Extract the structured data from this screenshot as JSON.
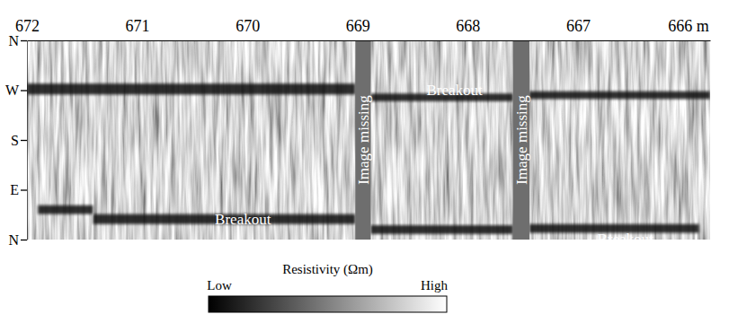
{
  "chart_data": {
    "type": "image_log",
    "xlim": [
      672,
      665.8
    ],
    "xticks": [
      672,
      671,
      670,
      669,
      668,
      667,
      {
        "value": 666,
        "label": "666 m"
      }
    ],
    "ylim": [
      0,
      360
    ],
    "yticks": [
      {
        "value": 360,
        "label": "N"
      },
      {
        "value": 270,
        "label": "W"
      },
      {
        "value": 180,
        "label": "S"
      },
      {
        "value": 90,
        "label": "E"
      },
      {
        "value": 0,
        "label": "N"
      }
    ],
    "breakouts": [
      {
        "from": 672,
        "to": 669.02,
        "azimuth": [
          262,
          282
        ]
      },
      {
        "from": 668.88,
        "to": 667.59,
        "azimuth": [
          250,
          264
        ]
      },
      {
        "from": 667.44,
        "to": 665.8,
        "azimuth": [
          254,
          268
        ]
      },
      {
        "from": 671.9,
        "to": 671.4,
        "azimuth": [
          46,
          62
        ]
      },
      {
        "from": 671.4,
        "to": 669.02,
        "azimuth": [
          28,
          46
        ]
      },
      {
        "from": 668.88,
        "to": 667.59,
        "azimuth": [
          10,
          26
        ]
      },
      {
        "from": 667.44,
        "to": 665.9,
        "azimuth": [
          12,
          28
        ]
      }
    ],
    "image_missing": [
      {
        "from": 669.02,
        "to": 668.88,
        "label": "Image missing"
      },
      {
        "from": 667.59,
        "to": 667.44,
        "label": "Image missing"
      }
    ],
    "annotations": [
      {
        "text": "Breakout",
        "x": 670.04,
        "y": 37
      },
      {
        "text": "Breakout",
        "x": 668.12,
        "y": 271
      },
      {
        "text": "Breakout",
        "x": 666.57,
        "y": 2
      }
    ],
    "colorbar": {
      "title": "Resistivity (Ωm)",
      "low_label": "Low",
      "high_label": "High"
    }
  }
}
